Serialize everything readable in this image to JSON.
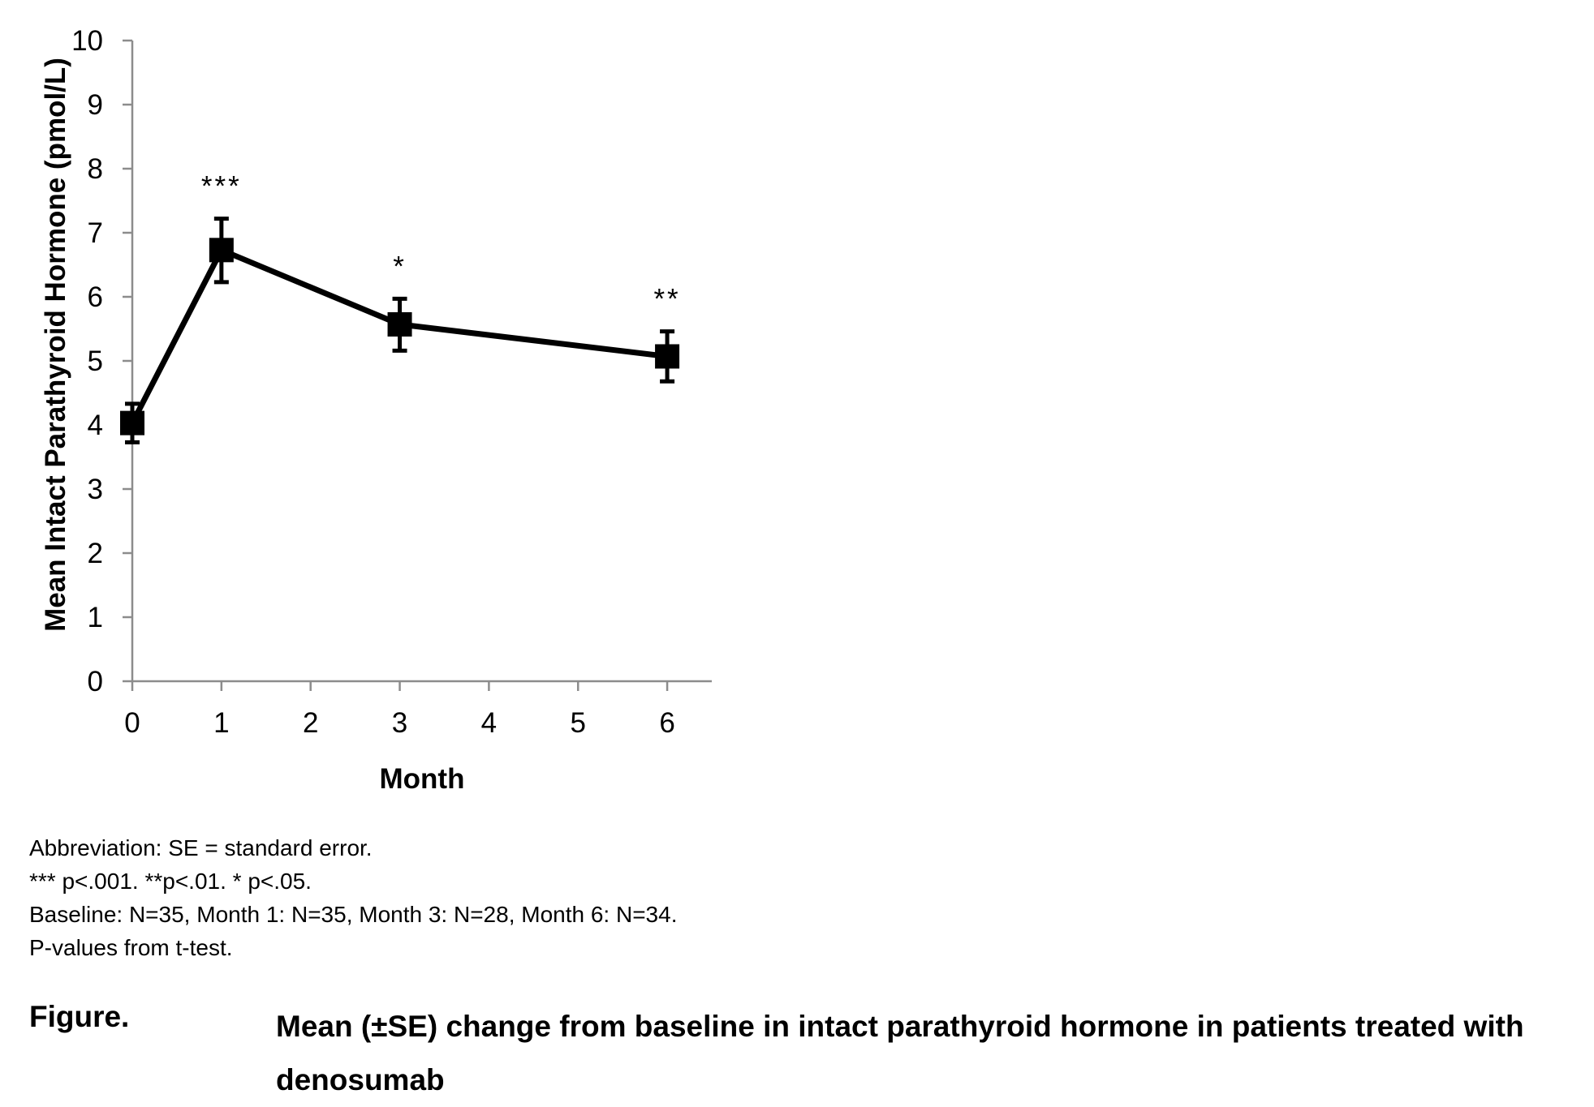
{
  "chart_data": {
    "type": "line",
    "xlabel": "Month",
    "ylabel": "Mean Intact Parathyroid Hormone (pmol/L)",
    "x_ticks": [
      0,
      1,
      2,
      3,
      4,
      5,
      6
    ],
    "y_ticks": [
      0,
      1,
      2,
      3,
      4,
      5,
      6,
      7,
      8,
      9,
      10
    ],
    "xlim": [
      0,
      6.5
    ],
    "ylim": [
      0,
      10
    ],
    "grid": false,
    "series": [
      {
        "x": [
          0,
          1,
          3,
          6
        ],
        "y": [
          4.03,
          6.73,
          5.57,
          5.07
        ],
        "err_low": [
          3.73,
          6.23,
          5.16,
          4.68
        ],
        "err_high": [
          4.33,
          7.22,
          5.97,
          5.46
        ],
        "marker": "square",
        "color": "#000000"
      }
    ],
    "annotations": [
      {
        "x": 1,
        "text": "***"
      },
      {
        "x": 3,
        "text": "*"
      },
      {
        "x": 6,
        "text": "**"
      }
    ]
  },
  "notes": {
    "line1": "Abbreviation: SE = standard error.",
    "line2": "*** p<.001. **p<.01. * p<.05.",
    "line3": "Baseline: N=35, Month 1: N=35, Month 3: N=28, Month 6: N=34.",
    "line4": "P-values from t-test."
  },
  "figure": {
    "label": "Figure.",
    "caption": "Mean (±SE) change from baseline in intact parathyroid hormone in patients treated with denosumab"
  }
}
